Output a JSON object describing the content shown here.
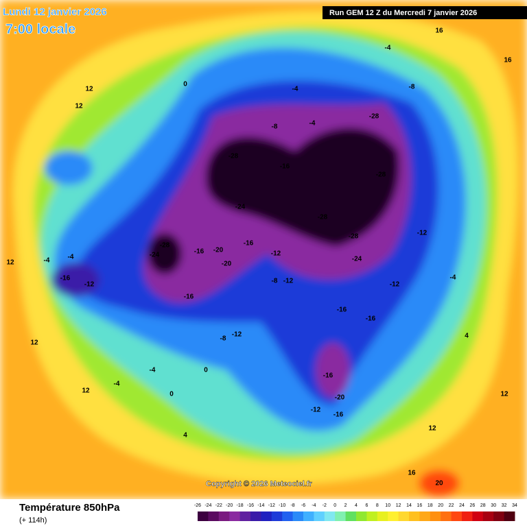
{
  "header": {
    "date": "Lundi 12 janvier 2026",
    "time": "7:00 locale",
    "run": "Run GEM 12 Z du Mercredi 7 janvier 2026"
  },
  "copyright": "Copyright © 2026 Meteociel.fr",
  "footer": {
    "title": "Température 850hPa",
    "lead": "(+ 114h)"
  },
  "colorbar": {
    "labels": [
      -26,
      -24,
      -22,
      -20,
      -18,
      -16,
      -14,
      -12,
      -10,
      -8,
      -6,
      -4,
      -2,
      0,
      2,
      4,
      6,
      8,
      10,
      12,
      14,
      16,
      18,
      20,
      22,
      24,
      26,
      28,
      30,
      32,
      34
    ],
    "colors": [
      "#3c0040",
      "#5a0a60",
      "#7a1a80",
      "#8a2aa0",
      "#6020a0",
      "#3a1aa8",
      "#2020c0",
      "#1e3ad8",
      "#2060f0",
      "#2a8af8",
      "#40b0ff",
      "#60d0ff",
      "#80e8f0",
      "#80f0b0",
      "#60e060",
      "#90e830",
      "#c0f020",
      "#e8f020",
      "#fff030",
      "#ffd830",
      "#ffc020",
      "#ffa818",
      "#ff9010",
      "#ff7010",
      "#ff4810",
      "#f02010",
      "#d00010",
      "#a80010",
      "#800010",
      "#500010"
    ]
  },
  "map_labels": [
    -28,
    -16,
    -24,
    -28,
    -28,
    -28,
    -28,
    -28,
    -24,
    -16,
    -20,
    -20,
    -16,
    -12,
    -12,
    -16,
    -16,
    -20,
    -16,
    -8,
    -12,
    -8,
    0,
    0,
    -4,
    -16,
    -12,
    -4,
    -4,
    12,
    12,
    12,
    12,
    12,
    4,
    -8,
    -4,
    16,
    16,
    -4,
    -8,
    -12,
    -4,
    4,
    12,
    12,
    20,
    16,
    -4,
    0,
    -4,
    -12,
    -12,
    -16,
    -16,
    -24
  ]
}
